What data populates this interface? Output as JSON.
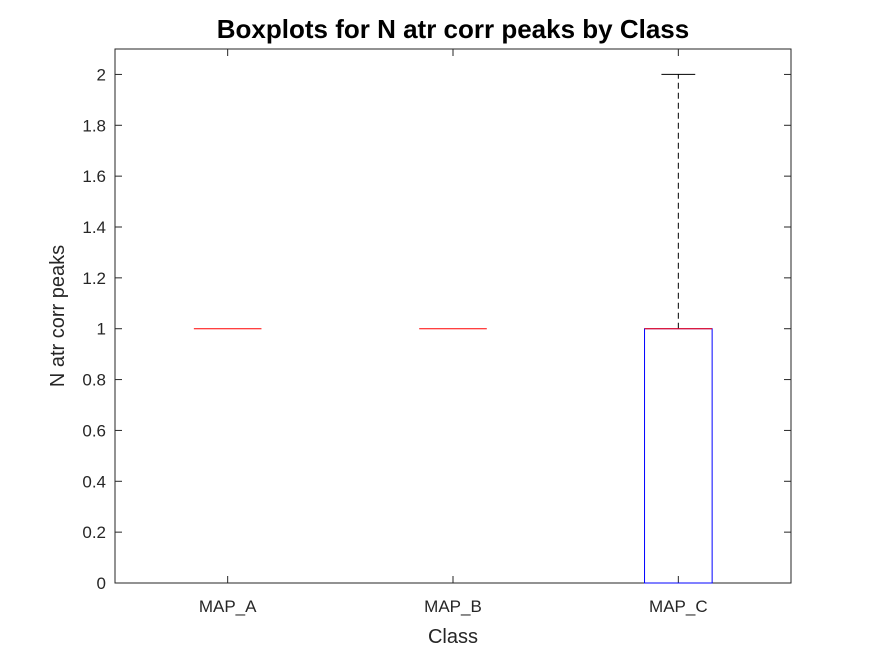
{
  "chart_data": {
    "type": "boxplot",
    "title": "Boxplots for N atr corr peaks by Class",
    "xlabel": "Class",
    "ylabel": "N atr corr peaks",
    "categories": [
      "MAP_A",
      "MAP_B",
      "MAP_C"
    ],
    "ylim": [
      0,
      2.1
    ],
    "yticks": [
      0,
      0.2,
      0.4,
      0.6,
      0.8,
      1,
      1.2,
      1.4,
      1.6,
      1.8,
      2
    ],
    "ytick_labels": [
      "0",
      "0.2",
      "0.4",
      "0.6",
      "0.8",
      "1",
      "1.2",
      "1.4",
      "1.6",
      "1.8",
      "2"
    ],
    "grid": false,
    "boxes": [
      {
        "category": "MAP_A",
        "whisker_low": 1,
        "q1": 1,
        "median": 1,
        "q3": 1,
        "whisker_high": 1
      },
      {
        "category": "MAP_B",
        "whisker_low": 1,
        "q1": 1,
        "median": 1,
        "q3": 1,
        "whisker_high": 1
      },
      {
        "category": "MAP_C",
        "whisker_low": 0,
        "q1": 0,
        "median": 1,
        "q3": 1,
        "whisker_high": 2
      }
    ],
    "colors": {
      "box": "#0000ff",
      "median": "#ff0000",
      "whisker": "#000000",
      "axis": "#262626"
    }
  }
}
